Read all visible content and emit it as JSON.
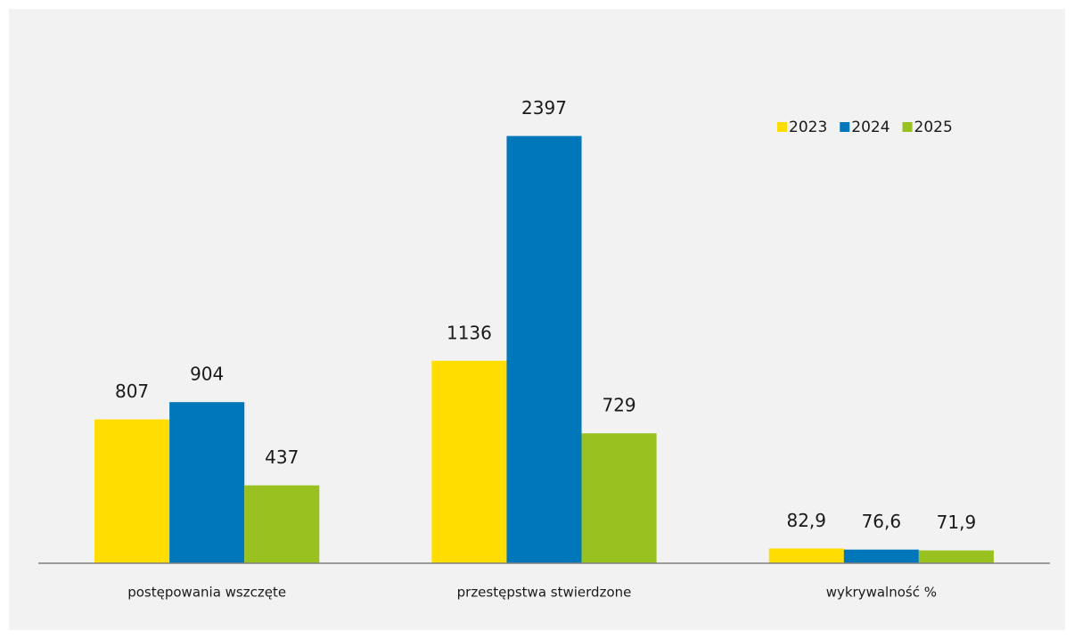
{
  "chart_data": {
    "type": "bar",
    "categories": [
      "postępowania wszczęte",
      "przestępstwa stwierdzone",
      "wykrywalność %"
    ],
    "series": [
      {
        "name": "2023",
        "color": "#ffdd00",
        "values": [
          807,
          1136,
          82.9
        ],
        "value_labels": [
          "807",
          "1136",
          "82,9"
        ]
      },
      {
        "name": "2024",
        "color": "#0077bb",
        "values": [
          904,
          2397,
          76.6
        ],
        "value_labels": [
          "904",
          "2397",
          "76,6"
        ]
      },
      {
        "name": "2025",
        "color": "#99c221",
        "values": [
          437,
          729,
          71.9
        ],
        "value_labels": [
          "437",
          "729",
          "71,9"
        ]
      }
    ],
    "ylim": [
      0,
      2800
    ],
    "legend": "top-right"
  }
}
